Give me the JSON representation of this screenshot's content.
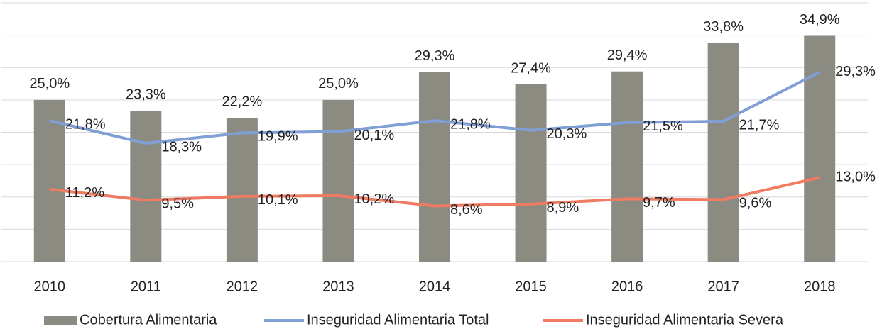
{
  "chart_data": {
    "type": "bar_line",
    "categories": [
      "2010",
      "2011",
      "2012",
      "2013",
      "2014",
      "2015",
      "2016",
      "2017",
      "2018"
    ],
    "series": [
      {
        "name": "Cobertura Alimentaria",
        "type": "bar",
        "color": "#8c8b82",
        "values": [
          25.0,
          23.3,
          22.2,
          25.0,
          29.3,
          27.4,
          29.4,
          33.8,
          34.9
        ],
        "value_labels": [
          "25,0%",
          "23,3%",
          "22,2%",
          "25,0%",
          "29,3%",
          "27,4%",
          "29,4%",
          "33,8%",
          "34,9%"
        ]
      },
      {
        "name": "Inseguridad Alimentaria Total",
        "type": "line",
        "color": "#7f9fd5",
        "values": [
          21.8,
          18.3,
          19.9,
          20.1,
          21.8,
          20.3,
          21.5,
          21.7,
          29.3
        ],
        "value_labels": [
          "21,8%",
          "18,3%",
          "19,9%",
          "20,1%",
          "21,8%",
          "20,3%",
          "21,5%",
          "21,7%",
          "29,3%"
        ]
      },
      {
        "name": "Inseguridad Alimentaria Severa",
        "type": "line",
        "color": "#ef7b63",
        "values": [
          11.2,
          9.5,
          10.1,
          10.2,
          8.6,
          8.9,
          9.7,
          9.6,
          13.0
        ],
        "value_labels": [
          "11,2%",
          "9,5%",
          "10,1%",
          "10,2%",
          "8,6%",
          "8,9%",
          "9,7%",
          "9,6%",
          "13,0%"
        ]
      }
    ],
    "ylim": [
      0,
      40
    ],
    "yticks": [
      0,
      5,
      10,
      15,
      20,
      25,
      30,
      35,
      40
    ],
    "grid": true,
    "legend": "bottom"
  }
}
